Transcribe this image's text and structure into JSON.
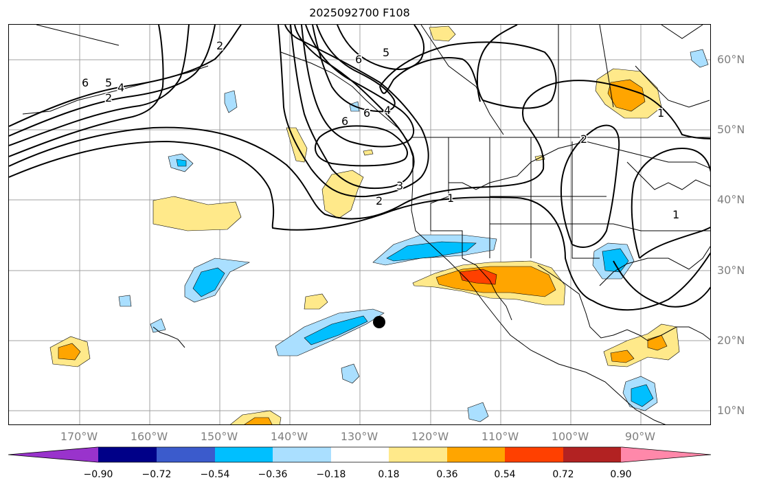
{
  "title": "2025092700 F108",
  "latitude_labels": [
    "60°N",
    "50°N",
    "40°N",
    "30°N",
    "20°N",
    "10°N"
  ],
  "longitude_labels": [
    "170°W",
    "160°W",
    "150°W",
    "140°W",
    "130°W",
    "120°W",
    "110°W",
    "100°W",
    "90°W"
  ],
  "colorbar": {
    "ticks": [
      "−0.90",
      "−0.72",
      "−0.54",
      "−0.36",
      "−0.18",
      "0.18",
      "0.36",
      "0.54",
      "0.72",
      "0.90"
    ],
    "colors": [
      "#9933cc",
      "#000088",
      "#3b5bcc",
      "#00bfff",
      "#aadfff",
      "#ffffff",
      "#ffe98a",
      "#ffa500",
      "#ff4000",
      "#b22222",
      "#ff88aa"
    ]
  },
  "contour_labels": [
    "6",
    "5",
    "4",
    "2",
    "6",
    "5",
    "6",
    "4",
    "6",
    "2",
    "3",
    "2",
    "1",
    "1",
    "2",
    "1"
  ],
  "marker": "storm-position-dot"
}
